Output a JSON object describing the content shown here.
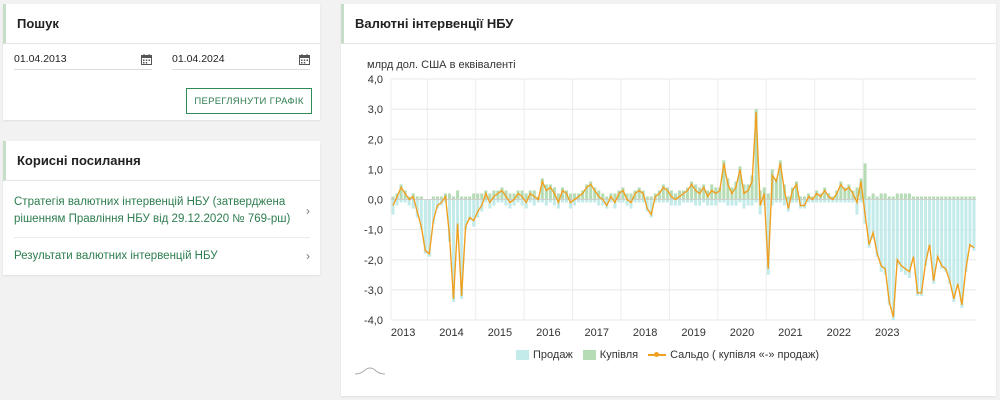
{
  "search": {
    "title": "Пошук",
    "date_from": "01.04.2013",
    "date_to": "01.04.2024",
    "button_label": "ПЕРЕГЛЯНУТИ ГРАФІК"
  },
  "links": {
    "title": "Корисні посилання",
    "items": [
      {
        "label": "Стратегія валютних інтервенцій НБУ (затверджена рішенням Правління НБУ від 29.12.2020 № 769-рш)"
      },
      {
        "label": "Результати валютних інтервенцій НБУ"
      }
    ]
  },
  "chart_panel": {
    "title": "Валютні інтервенції НБУ"
  },
  "colors": {
    "sale": "#c3ebea",
    "purchase": "#b5dcb4",
    "saldo": "#f0a020",
    "accent": "#2e7d4f"
  },
  "chart_data": {
    "type": "bar",
    "ylabel": "млрд дол. США в еквіваленті",
    "ylim": [
      -4,
      4
    ],
    "yticks": [
      "4,0",
      "3,0",
      "2,0",
      "1,0",
      "0,0",
      "-1,0",
      "-2,0",
      "-3,0",
      "-4,0"
    ],
    "year_labels": [
      "2013",
      "2014",
      "2015",
      "2016",
      "2017",
      "2018",
      "2019",
      "2020",
      "2021",
      "2022",
      "2023"
    ],
    "x_start_year": 2013,
    "x_start_month": 4,
    "legend": [
      "Продаж",
      "Купівля",
      "Сальдо ( купівля «-» продаж)"
    ],
    "saldo": [
      -0.2,
      0.1,
      0.4,
      0.2,
      0.0,
      0.1,
      -0.4,
      -0.9,
      -1.7,
      -1.8,
      -0.7,
      -0.2,
      -0.1,
      0.1,
      -1.2,
      -3.3,
      -0.8,
      -3.2,
      -0.9,
      -0.6,
      -0.7,
      -0.4,
      -0.2,
      0.2,
      -0.1,
      0.1,
      0.2,
      0.3,
      0.1,
      -0.1,
      0.0,
      0.2,
      0.1,
      -0.1,
      0.2,
      0.1,
      0.0,
      0.6,
      0.3,
      0.4,
      0.2,
      -0.1,
      0.3,
      0.2,
      -0.1,
      0.0,
      0.1,
      0.2,
      0.4,
      0.5,
      0.3,
      0.1,
      0.0,
      -0.2,
      0.1,
      -0.1,
      0.2,
      0.3,
      0.0,
      -0.1,
      0.2,
      0.3,
      0.2,
      -0.3,
      -0.5,
      0.1,
      0.2,
      0.4,
      0.3,
      0.1,
      0.0,
      0.1,
      0.2,
      0.3,
      0.5,
      0.3,
      0.2,
      0.4,
      0.1,
      0.3,
      0.2,
      0.3,
      1.2,
      0.5,
      0.2,
      0.4,
      1.0,
      0.2,
      0.3,
      0.6,
      2.9,
      -0.2,
      0.2,
      -2.3,
      0.8,
      0.6,
      1.2,
      0.3,
      -0.3,
      0.3,
      0.5,
      -0.2,
      -0.2,
      0.1,
      0.0,
      0.2,
      0.1,
      0.3,
      0.1,
      0.0,
      0.2,
      0.5,
      0.3,
      0.4,
      0.2,
      -0.1,
      0.6,
      -0.5,
      -1.5,
      -1.1,
      -1.8,
      -2.2,
      -2.3,
      -3.4,
      -3.9,
      -2.0,
      -2.2,
      -2.3,
      -2.4,
      -1.9,
      -3.1,
      -3.1,
      -2.1,
      -1.5,
      -2.7,
      -1.9,
      -2.2,
      -2.3,
      -2.7,
      -3.3,
      -2.8,
      -3.5,
      -2.3,
      -1.5,
      -1.6
    ],
    "sale": [
      -0.5,
      -0.2,
      -0.1,
      -0.1,
      -0.2,
      -0.3,
      -0.6,
      -1.0,
      -1.8,
      -1.9,
      -0.8,
      -0.3,
      -0.2,
      -0.1,
      -1.4,
      -3.4,
      -1.1,
      -3.3,
      -1.0,
      -0.7,
      -0.9,
      -0.6,
      -0.4,
      -0.1,
      -0.3,
      -0.2,
      -0.1,
      -0.1,
      -0.2,
      -0.3,
      -0.2,
      -0.1,
      -0.2,
      -0.3,
      -0.1,
      -0.2,
      -0.1,
      -0.1,
      -0.2,
      -0.1,
      -0.2,
      -0.3,
      -0.1,
      -0.1,
      -0.3,
      -0.2,
      -0.1,
      -0.1,
      -0.1,
      -0.1,
      -0.1,
      -0.2,
      -0.2,
      -0.3,
      -0.1,
      -0.3,
      -0.1,
      -0.1,
      -0.2,
      -0.3,
      -0.1,
      -0.1,
      -0.1,
      -0.4,
      -0.6,
      -0.1,
      -0.1,
      -0.1,
      -0.1,
      -0.2,
      -0.2,
      -0.2,
      -0.1,
      -0.1,
      -0.1,
      -0.2,
      -0.2,
      -0.1,
      -0.2,
      -0.2,
      -0.2,
      -0.1,
      -0.1,
      -0.2,
      -0.2,
      -0.2,
      -0.1,
      -0.3,
      -0.2,
      -0.2,
      -0.1,
      -0.5,
      -0.2,
      -2.5,
      -0.2,
      -0.1,
      -0.1,
      -0.2,
      -0.4,
      -0.1,
      -0.1,
      -0.3,
      -0.3,
      -0.1,
      -0.1,
      -0.1,
      -0.1,
      -0.1,
      -0.1,
      -0.1,
      -0.1,
      -0.1,
      -0.1,
      -0.1,
      -0.1,
      -0.5,
      -0.1,
      -0.8,
      -1.6,
      -1.3,
      -1.9,
      -2.4,
      -2.5,
      -3.5,
      -4.0,
      -2.2,
      -2.4,
      -2.5,
      -2.6,
      -2.0,
      -3.2,
      -3.2,
      -2.2,
      -1.6,
      -2.8,
      -2.0,
      -2.3,
      -2.4,
      -2.8,
      -3.4,
      -2.9,
      -3.6,
      -2.4,
      -1.6,
      -1.7
    ],
    "purchase": [
      0.1,
      0.2,
      0.5,
      0.3,
      0.1,
      0.2,
      0.1,
      0.1,
      0.0,
      0.0,
      0.1,
      0.1,
      0.1,
      0.2,
      0.2,
      0.1,
      0.3,
      0.1,
      0.1,
      0.1,
      0.2,
      0.2,
      0.2,
      0.3,
      0.2,
      0.3,
      0.3,
      0.4,
      0.3,
      0.2,
      0.2,
      0.3,
      0.3,
      0.2,
      0.3,
      0.3,
      0.1,
      0.7,
      0.5,
      0.5,
      0.4,
      0.2,
      0.4,
      0.3,
      0.2,
      0.2,
      0.2,
      0.3,
      0.5,
      0.6,
      0.4,
      0.3,
      0.2,
      0.1,
      0.2,
      0.2,
      0.3,
      0.4,
      0.2,
      0.2,
      0.3,
      0.4,
      0.3,
      0.1,
      0.1,
      0.2,
      0.3,
      0.5,
      0.4,
      0.3,
      0.2,
      0.3,
      0.3,
      0.4,
      0.6,
      0.5,
      0.4,
      0.5,
      0.3,
      0.5,
      0.4,
      0.4,
      1.3,
      0.7,
      0.4,
      0.6,
      1.1,
      0.5,
      0.5,
      0.8,
      3.0,
      0.3,
      0.4,
      0.2,
      1.0,
      0.7,
      1.3,
      0.5,
      0.1,
      0.4,
      0.6,
      0.1,
      0.1,
      0.2,
      0.1,
      0.3,
      0.2,
      0.4,
      0.2,
      0.1,
      0.3,
      0.6,
      0.4,
      0.5,
      0.3,
      0.4,
      0.7,
      1.2,
      0.1,
      0.2,
      0.1,
      0.2,
      0.2,
      0.1,
      0.1,
      0.2,
      0.2,
      0.2,
      0.2,
      0.1,
      0.1,
      0.1,
      0.1,
      0.1,
      0.1,
      0.1,
      0.1,
      0.1,
      0.1,
      0.1,
      0.1,
      0.1,
      0.1,
      0.1,
      0.1
    ]
  }
}
